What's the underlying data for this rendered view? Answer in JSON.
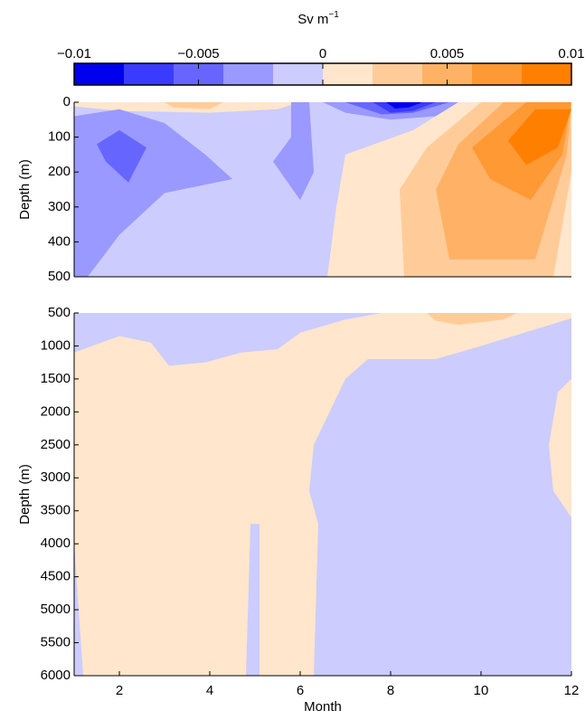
{
  "chart_data": {
    "type": "contour",
    "colorbar": {
      "title": "Sv m",
      "title_superscript": "−1",
      "levels": [
        -0.01,
        -0.008,
        -0.006,
        -0.004,
        -0.002,
        0,
        0.002,
        0.004,
        0.006,
        0.008,
        0.01
      ],
      "colors": [
        "#0000ee",
        "#3b3bff",
        "#6666ff",
        "#9999ff",
        "#ccccff",
        "#ffe6cc",
        "#ffcc99",
        "#ffb266",
        "#ff9933",
        "#ff8000"
      ],
      "lim": [
        -0.01,
        0.01
      ],
      "ticks": [
        {
          "value": -0.01,
          "label": "−0.01"
        },
        {
          "value": -0.005,
          "label": "−0.005"
        },
        0,
        0.005,
        0.01
      ]
    },
    "xlabel": "Month",
    "y_inverted": true,
    "panels": [
      {
        "ylabel": "Depth (m)",
        "xlim": [
          1,
          12
        ],
        "ylim": [
          0,
          500
        ],
        "yticks": [
          0,
          100,
          200,
          300,
          400,
          500
        ],
        "regions": [
          {
            "value": -0.001,
            "points": [
              [
                1,
                0
              ],
              [
                12,
                0
              ],
              [
                12,
                500
              ],
              [
                1,
                500
              ]
            ]
          },
          {
            "value": 0.001,
            "points": [
              [
                1,
                0
              ],
              [
                6,
                0
              ],
              [
                5.5,
                20
              ],
              [
                4,
                30
              ],
              [
                2,
                25
              ],
              [
                1,
                12
              ]
            ]
          },
          {
            "value": 0.003,
            "points": [
              [
                3,
                0
              ],
              [
                4.3,
                0
              ],
              [
                4,
                20
              ],
              [
                3.2,
                15
              ]
            ]
          },
          {
            "value": -0.003,
            "points": [
              [
                1,
                40
              ],
              [
                2,
                20
              ],
              [
                3,
                60
              ],
              [
                3.9,
                150
              ],
              [
                4.5,
                220
              ],
              [
                3,
                260
              ],
              [
                2,
                380
              ],
              [
                1.3,
                500
              ],
              [
                1,
                500
              ]
            ]
          },
          {
            "value": -0.003,
            "points": [
              [
                5.8,
                0
              ],
              [
                6.2,
                0
              ],
              [
                6.3,
                200
              ],
              [
                6,
                280
              ],
              [
                5.4,
                170
              ],
              [
                5.8,
                100
              ]
            ]
          },
          {
            "value": -0.003,
            "points": [
              [
                6.5,
                0
              ],
              [
                9.5,
                0
              ],
              [
                9,
                40
              ],
              [
                8,
                50
              ],
              [
                7,
                30
              ]
            ]
          },
          {
            "value": -0.005,
            "points": [
              [
                1.5,
                120
              ],
              [
                2,
                80
              ],
              [
                2.6,
                130
              ],
              [
                2.2,
                230
              ],
              [
                1.7,
                170
              ]
            ]
          },
          {
            "value": -0.005,
            "points": [
              [
                7,
                0
              ],
              [
                9.3,
                0
              ],
              [
                8.5,
                30
              ],
              [
                7.8,
                35
              ]
            ]
          },
          {
            "value": -0.007,
            "points": [
              [
                7.6,
                0
              ],
              [
                9,
                0
              ],
              [
                8.5,
                25
              ],
              [
                8,
                30
              ]
            ]
          },
          {
            "value": -0.009,
            "points": [
              [
                7.9,
                0
              ],
              [
                8.7,
                0
              ],
              [
                8.4,
                15
              ],
              [
                8.1,
                18
              ]
            ]
          },
          {
            "value": 0.001,
            "points": [
              [
                9.5,
                0
              ],
              [
                12,
                0
              ],
              [
                12,
                500
              ],
              [
                6.6,
                500
              ],
              [
                6.8,
                300
              ],
              [
                7,
                150
              ],
              [
                8.5,
                80
              ]
            ]
          },
          {
            "value": 0.003,
            "points": [
              [
                10,
                0
              ],
              [
                12,
                0
              ],
              [
                12,
                200
              ],
              [
                11.6,
                500
              ],
              [
                8.3,
                500
              ],
              [
                8.2,
                250
              ],
              [
                8.8,
                130
              ]
            ]
          },
          {
            "value": 0.005,
            "points": [
              [
                10.5,
                0
              ],
              [
                12,
                0
              ],
              [
                11.9,
                150
              ],
              [
                11.2,
                450
              ],
              [
                9.3,
                450
              ],
              [
                9,
                250
              ],
              [
                9.5,
                120
              ]
            ]
          },
          {
            "value": 0.007,
            "points": [
              [
                11,
                0
              ],
              [
                12,
                0
              ],
              [
                11.8,
                150
              ],
              [
                11.1,
                280
              ],
              [
                10.2,
                220
              ],
              [
                9.8,
                130
              ]
            ]
          },
          {
            "value": 0.009,
            "points": [
              [
                11.2,
                20
              ],
              [
                12,
                20
              ],
              [
                11.7,
                130
              ],
              [
                11,
                180
              ],
              [
                10.6,
                110
              ]
            ]
          }
        ]
      },
      {
        "ylabel": "Depth (m)",
        "xlim": [
          1,
          12
        ],
        "ylim": [
          500,
          6000
        ],
        "yticks": [
          500,
          1000,
          1500,
          2000,
          2500,
          3000,
          3500,
          4000,
          4500,
          5000,
          5500,
          6000
        ],
        "xticks": [
          2,
          4,
          6,
          8,
          10,
          12
        ],
        "regions": [
          {
            "value": -0.001,
            "points": [
              [
                1,
                500
              ],
              [
                12,
                500
              ],
              [
                12,
                6000
              ],
              [
                1,
                6000
              ]
            ]
          },
          {
            "value": 0.001,
            "points": [
              [
                1,
                1100
              ],
              [
                2,
                850
              ],
              [
                2.7,
                950
              ],
              [
                3.1,
                1300
              ],
              [
                3.9,
                1250
              ],
              [
                4.7,
                1100
              ],
              [
                5.5,
                1050
              ],
              [
                6,
                800
              ],
              [
                7,
                600
              ],
              [
                7.8,
                500
              ],
              [
                12,
                500
              ],
              [
                12,
                580
              ],
              [
                10,
                1000
              ],
              [
                9,
                1200
              ],
              [
                7.5,
                1200
              ],
              [
                7,
                1500
              ],
              [
                6.3,
                2500
              ],
              [
                6.2,
                3200
              ],
              [
                6.4,
                3700
              ],
              [
                6.3,
                6000
              ],
              [
                5.1,
                6000
              ],
              [
                5.1,
                3700
              ],
              [
                4.9,
                3700
              ],
              [
                4.8,
                6000
              ],
              [
                1.2,
                6000
              ],
              [
                1,
                4000
              ]
            ]
          },
          {
            "value": 0.003,
            "points": [
              [
                8.8,
                500
              ],
              [
                10.8,
                500
              ],
              [
                10.5,
                600
              ],
              [
                9.5,
                680
              ],
              [
                9,
                620
              ]
            ]
          },
          {
            "value": 0.001,
            "points": [
              [
                12,
                1500
              ],
              [
                11.7,
                1700
              ],
              [
                11.5,
                2500
              ],
              [
                11.6,
                3200
              ],
              [
                12,
                3600
              ]
            ]
          }
        ]
      }
    ]
  }
}
